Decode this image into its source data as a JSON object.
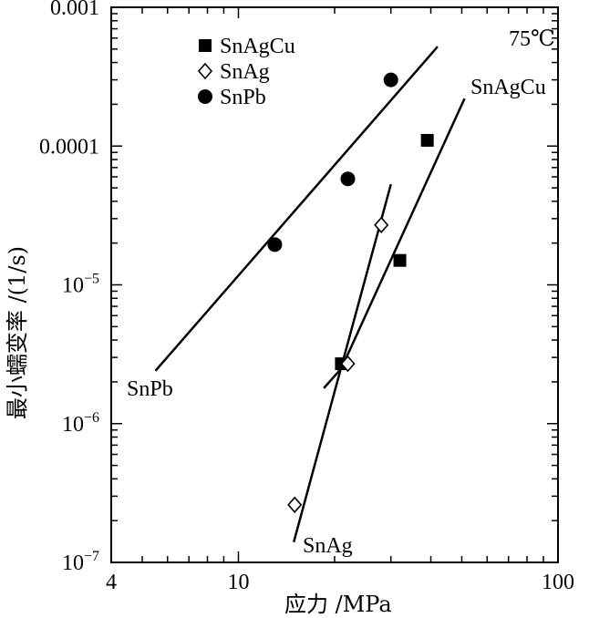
{
  "chart_data": {
    "type": "scatter",
    "title": "",
    "xlabel": "应力 /MPa",
    "ylabel": "最小蠕变率 /(1/s)",
    "xscale": "log",
    "yscale": "log",
    "xlim": [
      4,
      100
    ],
    "ylim": [
      1e-07,
      0.001
    ],
    "grid": false,
    "legend_position": "top-left",
    "annotation": "75℃",
    "x_ticks": [
      {
        "value": 4,
        "label": "4"
      },
      {
        "value": 10,
        "label": "10"
      },
      {
        "value": 100,
        "label": "100"
      }
    ],
    "y_ticks": [
      {
        "value": 0.001,
        "base": "0.001",
        "exp": ""
      },
      {
        "value": 0.0001,
        "base": "0.0001",
        "exp": ""
      },
      {
        "value": 1e-05,
        "base": "10",
        "exp": "−5"
      },
      {
        "value": 1e-06,
        "base": "10",
        "exp": "−6"
      },
      {
        "value": 1e-07,
        "base": "10",
        "exp": "−7"
      }
    ],
    "series": [
      {
        "name": "SnAgCu",
        "marker": "filled-square",
        "points": [
          [
            21,
            2.7e-06
          ],
          [
            32,
            1.5e-05
          ],
          [
            39,
            0.00011
          ]
        ],
        "fit_line": [
          [
            21,
            2.5e-06
          ],
          [
            51,
            0.00022
          ]
        ],
        "line_label": "SnAgCu"
      },
      {
        "name": "SnAg",
        "marker": "open-diamond",
        "points": [
          [
            15,
            2.6e-07
          ],
          [
            22,
            2.7e-06
          ],
          [
            28,
            2.7e-05
          ]
        ],
        "fit_line": [
          [
            14.9,
            1.4e-07
          ],
          [
            30,
            5.3e-05
          ]
        ],
        "line_label": "SnAg"
      },
      {
        "name": "SnPb",
        "marker": "filled-circle",
        "points": [
          [
            13,
            1.95e-05
          ],
          [
            22,
            5.8e-05
          ],
          [
            30,
            0.0003
          ]
        ],
        "fit_line": [
          [
            5.5,
            2.4e-06
          ],
          [
            42,
            0.00052
          ]
        ],
        "line_label": "SnPb"
      }
    ],
    "extra_lines": [
      {
        "series": "SnAgCu",
        "points": [
          [
            18.5,
            1.8e-06
          ],
          [
            21,
            2.5e-06
          ]
        ]
      }
    ]
  },
  "legend": [
    {
      "label": "SnAgCu",
      "marker": "filled-square"
    },
    {
      "label": "SnAg",
      "marker": "open-diamond"
    },
    {
      "label": "SnPb",
      "marker": "filled-circle"
    }
  ]
}
